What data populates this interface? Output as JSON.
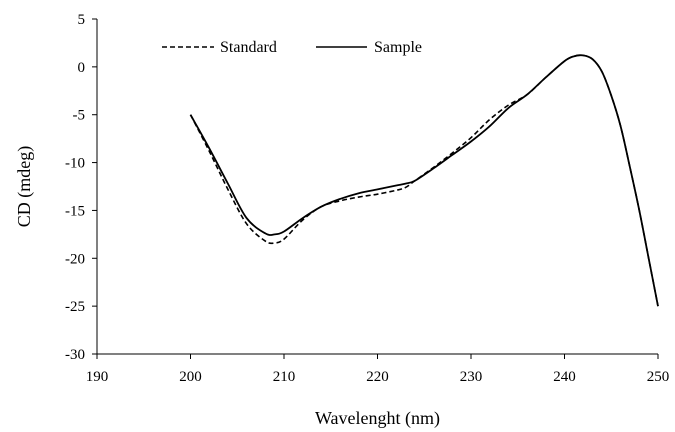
{
  "chart_data": {
    "type": "line",
    "title": "",
    "xlabel": "Wavelenght (nm)",
    "ylabel": "CD (mdeg)",
    "xlim": [
      190,
      250
    ],
    "ylim": [
      -30,
      5
    ],
    "xticks": [
      190,
      200,
      210,
      220,
      230,
      240,
      250
    ],
    "yticks": [
      5,
      0,
      -5,
      -10,
      -15,
      -20,
      -25,
      -30
    ],
    "grid": false,
    "legend": "top-left",
    "series": [
      {
        "name": "Standard",
        "style": "dashed",
        "color": "#000000",
        "x": [
          200,
          202,
          204,
          206,
          208,
          209,
          210,
          212,
          214,
          216,
          218,
          220,
          222,
          223,
          224,
          226,
          228,
          230,
          232,
          234,
          236,
          238,
          240,
          241,
          242,
          243,
          244,
          245,
          246,
          247,
          248,
          249,
          250
        ],
        "y": [
          -5,
          -8.8,
          -12.8,
          -16.4,
          -18.2,
          -18.4,
          -18.0,
          -16.0,
          -14.6,
          -14.0,
          -13.6,
          -13.3,
          -12.9,
          -12.6,
          -11.9,
          -10.5,
          -9.0,
          -7.4,
          -5.5,
          -4.0,
          -2.9,
          -1.1,
          0.6,
          1.1,
          1.2,
          0.8,
          -0.5,
          -3.0,
          -6.2,
          -10.5,
          -15.0,
          -20.0,
          -25.0
        ]
      },
      {
        "name": "Sample",
        "style": "solid",
        "color": "#000000",
        "x": [
          200,
          202,
          204,
          206,
          208,
          209,
          210,
          212,
          214,
          216,
          218,
          220,
          222,
          223,
          224,
          226,
          228,
          230,
          232,
          234,
          236,
          238,
          240,
          241,
          242,
          243,
          244,
          245,
          246,
          247,
          248,
          249,
          250
        ],
        "y": [
          -5,
          -8.5,
          -12.2,
          -15.8,
          -17.4,
          -17.5,
          -17.2,
          -15.8,
          -14.6,
          -13.8,
          -13.2,
          -12.8,
          -12.4,
          -12.2,
          -11.9,
          -10.6,
          -9.2,
          -7.8,
          -6.2,
          -4.3,
          -2.9,
          -1.1,
          0.6,
          1.1,
          1.2,
          0.8,
          -0.5,
          -3.0,
          -6.2,
          -10.5,
          -15.0,
          -20.0,
          -25.0
        ]
      }
    ]
  }
}
